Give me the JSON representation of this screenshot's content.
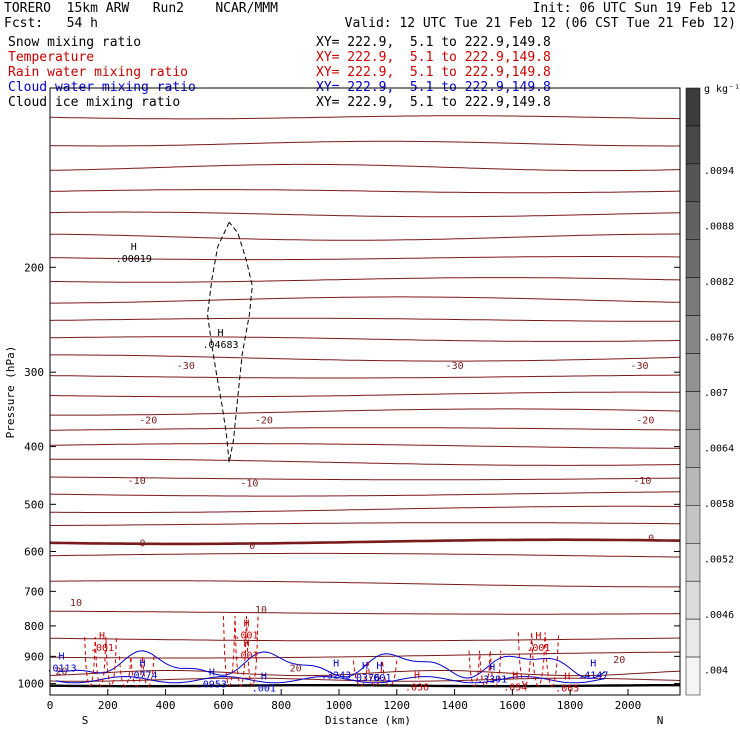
{
  "header": {
    "left_line1": "TORERO  15km ARW   Run2    NCAR/MMM",
    "right_line1": "Init: 06 UTC Sun 19 Feb 12",
    "left_line2": "Fcst:   54 h",
    "right_line2": "Valid: 12 UTC Tue 21 Feb 12 (06 CST Tue 21 Feb 12)"
  },
  "fields": [
    {
      "label": "Snow mixing ratio",
      "xy": "XY= 222.9,  5.1 to 222.9,149.8",
      "color": "#000000"
    },
    {
      "label": "Temperature",
      "xy": "XY= 222.9,  5.1 to 222.9,149.8",
      "color": "#cc0000"
    },
    {
      "label": "Rain water mixing ratio",
      "xy": "XY= 222.9,  5.1 to 222.9,149.8",
      "color": "#cc0000"
    },
    {
      "label": "Cloud water mixing ratio",
      "xy": "XY= 222.9,  5.1 to 222.9,149.8",
      "color": "#0000cc"
    },
    {
      "label": "Cloud ice mixing ratio",
      "xy": "XY= 222.9,  5.1 to 222.9,149.8",
      "color": "#000000"
    }
  ],
  "chart_data": {
    "type": "contour",
    "xlabel": "Distance (km)",
    "ylabel": "Pressure (hPa)",
    "x_ticks": [
      0,
      200,
      400,
      600,
      800,
      1000,
      1200,
      1400,
      1600,
      1800,
      2000
    ],
    "y_ticks": [
      200,
      300,
      400,
      500,
      600,
      700,
      800,
      900,
      1000
    ],
    "xlim": [
      0,
      2180
    ],
    "ylim": [
      1045,
      100
    ],
    "y_scale": "log",
    "end_labels": {
      "left": "S",
      "right": "N"
    },
    "temperature_labels": [
      {
        "text": "-30",
        "x": 470,
        "p": 292
      },
      {
        "text": "-30",
        "x": 1400,
        "p": 292
      },
      {
        "text": "-30",
        "x": 2040,
        "p": 292
      },
      {
        "text": "-20",
        "x": 340,
        "p": 360
      },
      {
        "text": "-20",
        "x": 740,
        "p": 360
      },
      {
        "text": "-20",
        "x": 2060,
        "p": 360
      },
      {
        "text": "-10",
        "x": 300,
        "p": 455
      },
      {
        "text": "-10",
        "x": 690,
        "p": 460
      },
      {
        "text": "-10",
        "x": 2050,
        "p": 455
      },
      {
        "text": "0",
        "x": 320,
        "p": 580
      },
      {
        "text": "0",
        "x": 700,
        "p": 585
      },
      {
        "text": "0",
        "x": 2080,
        "p": 568
      },
      {
        "text": "10",
        "x": 90,
        "p": 730
      },
      {
        "text": "10",
        "x": 730,
        "p": 750
      },
      {
        "text": "20",
        "x": 40,
        "p": 950
      },
      {
        "text": "20",
        "x": 850,
        "p": 940
      },
      {
        "text": "20",
        "x": 1970,
        "p": 910
      }
    ],
    "maxima": [
      {
        "text": ".00019",
        "x": 290,
        "p": 190,
        "color": "#000000"
      },
      {
        "text": ".04683",
        "x": 590,
        "p": 265,
        "color": "#000000"
      },
      {
        "text": ".001",
        "x": 180,
        "p": 855,
        "color": "#cc0000"
      },
      {
        "text": ".001",
        "x": 680,
        "p": 815,
        "color": "#cc0000"
      },
      {
        "text": ".001",
        "x": 680,
        "p": 880,
        "color": "#cc0000"
      },
      {
        "text": ".001",
        "x": 1690,
        "p": 855,
        "color": "#cc0000"
      },
      {
        "text": ".0774",
        "x": 320,
        "p": 950,
        "color": "#0000cc"
      },
      {
        "text": ".0953",
        "x": 560,
        "p": 985,
        "color": "#0000cc"
      },
      {
        "text": ".3243",
        "x": 990,
        "p": 950,
        "color": "#0000cc"
      },
      {
        "text": ".3391",
        "x": 1530,
        "p": 965,
        "color": "#0000cc"
      },
      {
        "text": ".4147",
        "x": 1880,
        "p": 950,
        "color": "#0000cc"
      },
      {
        "text": ".0113",
        "x": 40,
        "p": 925,
        "color": "#0000cc"
      },
      {
        "text": ".001",
        "x": 1140,
        "p": 960,
        "color": "#0000cc"
      },
      {
        "text": ".001",
        "x": 740,
        "p": 1000,
        "color": "#0000cc"
      },
      {
        "text": ".036",
        "x": 1270,
        "p": 995,
        "color": "#cc0000"
      },
      {
        "text": ".054",
        "x": 1610,
        "p": 995,
        "color": "#cc0000"
      },
      {
        "text": ".065",
        "x": 1790,
        "p": 1000,
        "color": "#cc0000"
      },
      {
        "text": ".0376",
        "x": 1090,
        "p": 960,
        "color": "#0000cc"
      }
    ],
    "colorbar": {
      "units": "g kg⁻¹",
      "ticks": [
        ".0094",
        ".0088",
        ".0082",
        ".0076",
        ".007",
        ".0064",
        ".0058",
        ".0052",
        ".0046",
        ".004"
      ],
      "levels": 16
    }
  }
}
